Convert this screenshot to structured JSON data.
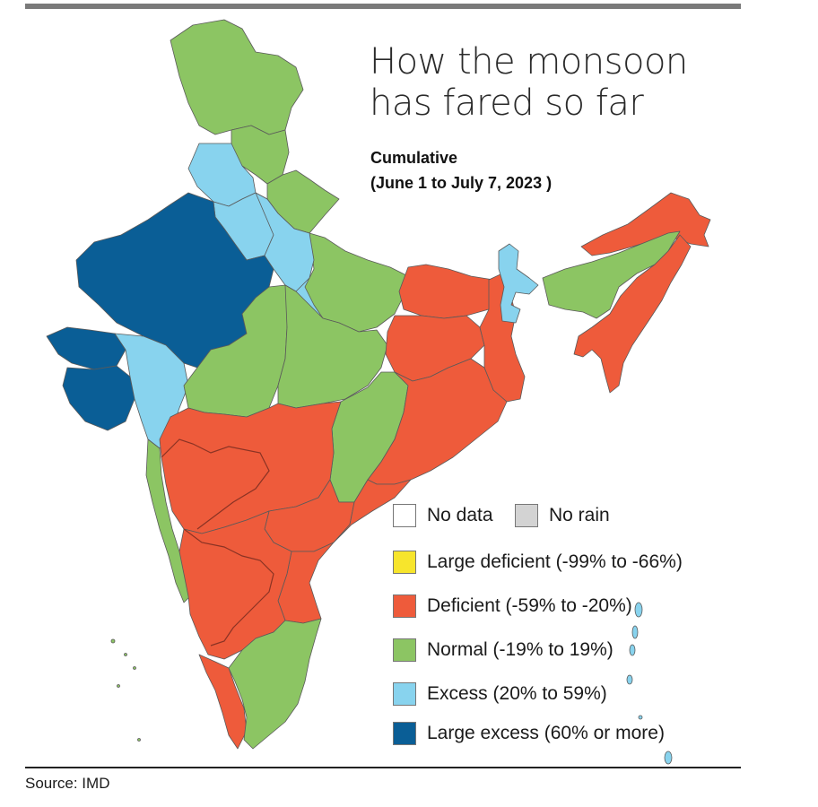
{
  "header": {
    "title_line1": "How the monsoon",
    "title_line2": "has fared so far",
    "subtitle_line1": "Cumulative",
    "subtitle_line2": "(June 1 to July 7, 2023 )"
  },
  "legend": {
    "items": [
      {
        "label": "No data",
        "color": "#ffffff"
      },
      {
        "label": "No rain",
        "color": "#d3d3d3"
      },
      {
        "label": "Large deficient (-99% to -66%)",
        "color": "#f7e52c"
      },
      {
        "label": "Deficient (-59% to -20%)",
        "color": "#ee5b3b"
      },
      {
        "label": "Normal (-19% to 19%)",
        "color": "#8cc563"
      },
      {
        "label": "Excess (20% to 59%)",
        "color": "#88d3ee"
      },
      {
        "label": "Large excess (60% or more)",
        "color": "#0a5e96"
      }
    ]
  },
  "map": {
    "colors": {
      "deficient": "#ee5b3b",
      "normal": "#8cc563",
      "excess": "#88d3ee",
      "large_excess": "#0a5e96",
      "border": "#5a5a5a"
    }
  },
  "footer": {
    "source": "Source: IMD"
  }
}
